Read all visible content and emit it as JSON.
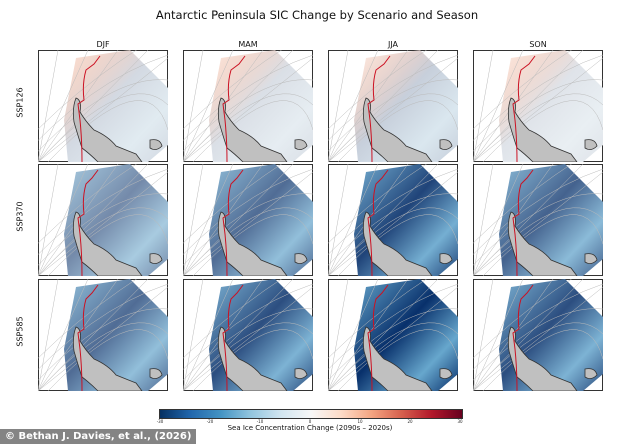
{
  "title": "Antarctic Peninsula SIC Change by Scenario and Season",
  "columns": [
    "DJF",
    "MAM",
    "JJA",
    "SON"
  ],
  "rows": [
    "SSP126",
    "SSP370",
    "SSP585"
  ],
  "colorbar": {
    "label": "Sea Ice Concentration Change (2090s – 2020s)",
    "ticks": [
      "-30",
      "-20",
      "-10",
      "0",
      "10",
      "20",
      "30"
    ],
    "range": [
      -30,
      30
    ],
    "colormap": "RdBu_r",
    "low_color": "#053061",
    "high_color": "#67001f"
  },
  "contour_color": "#cc1122",
  "land_color": "#c0c0c0",
  "credit": "© Bethan J. Davies, et al., (2026)"
}
